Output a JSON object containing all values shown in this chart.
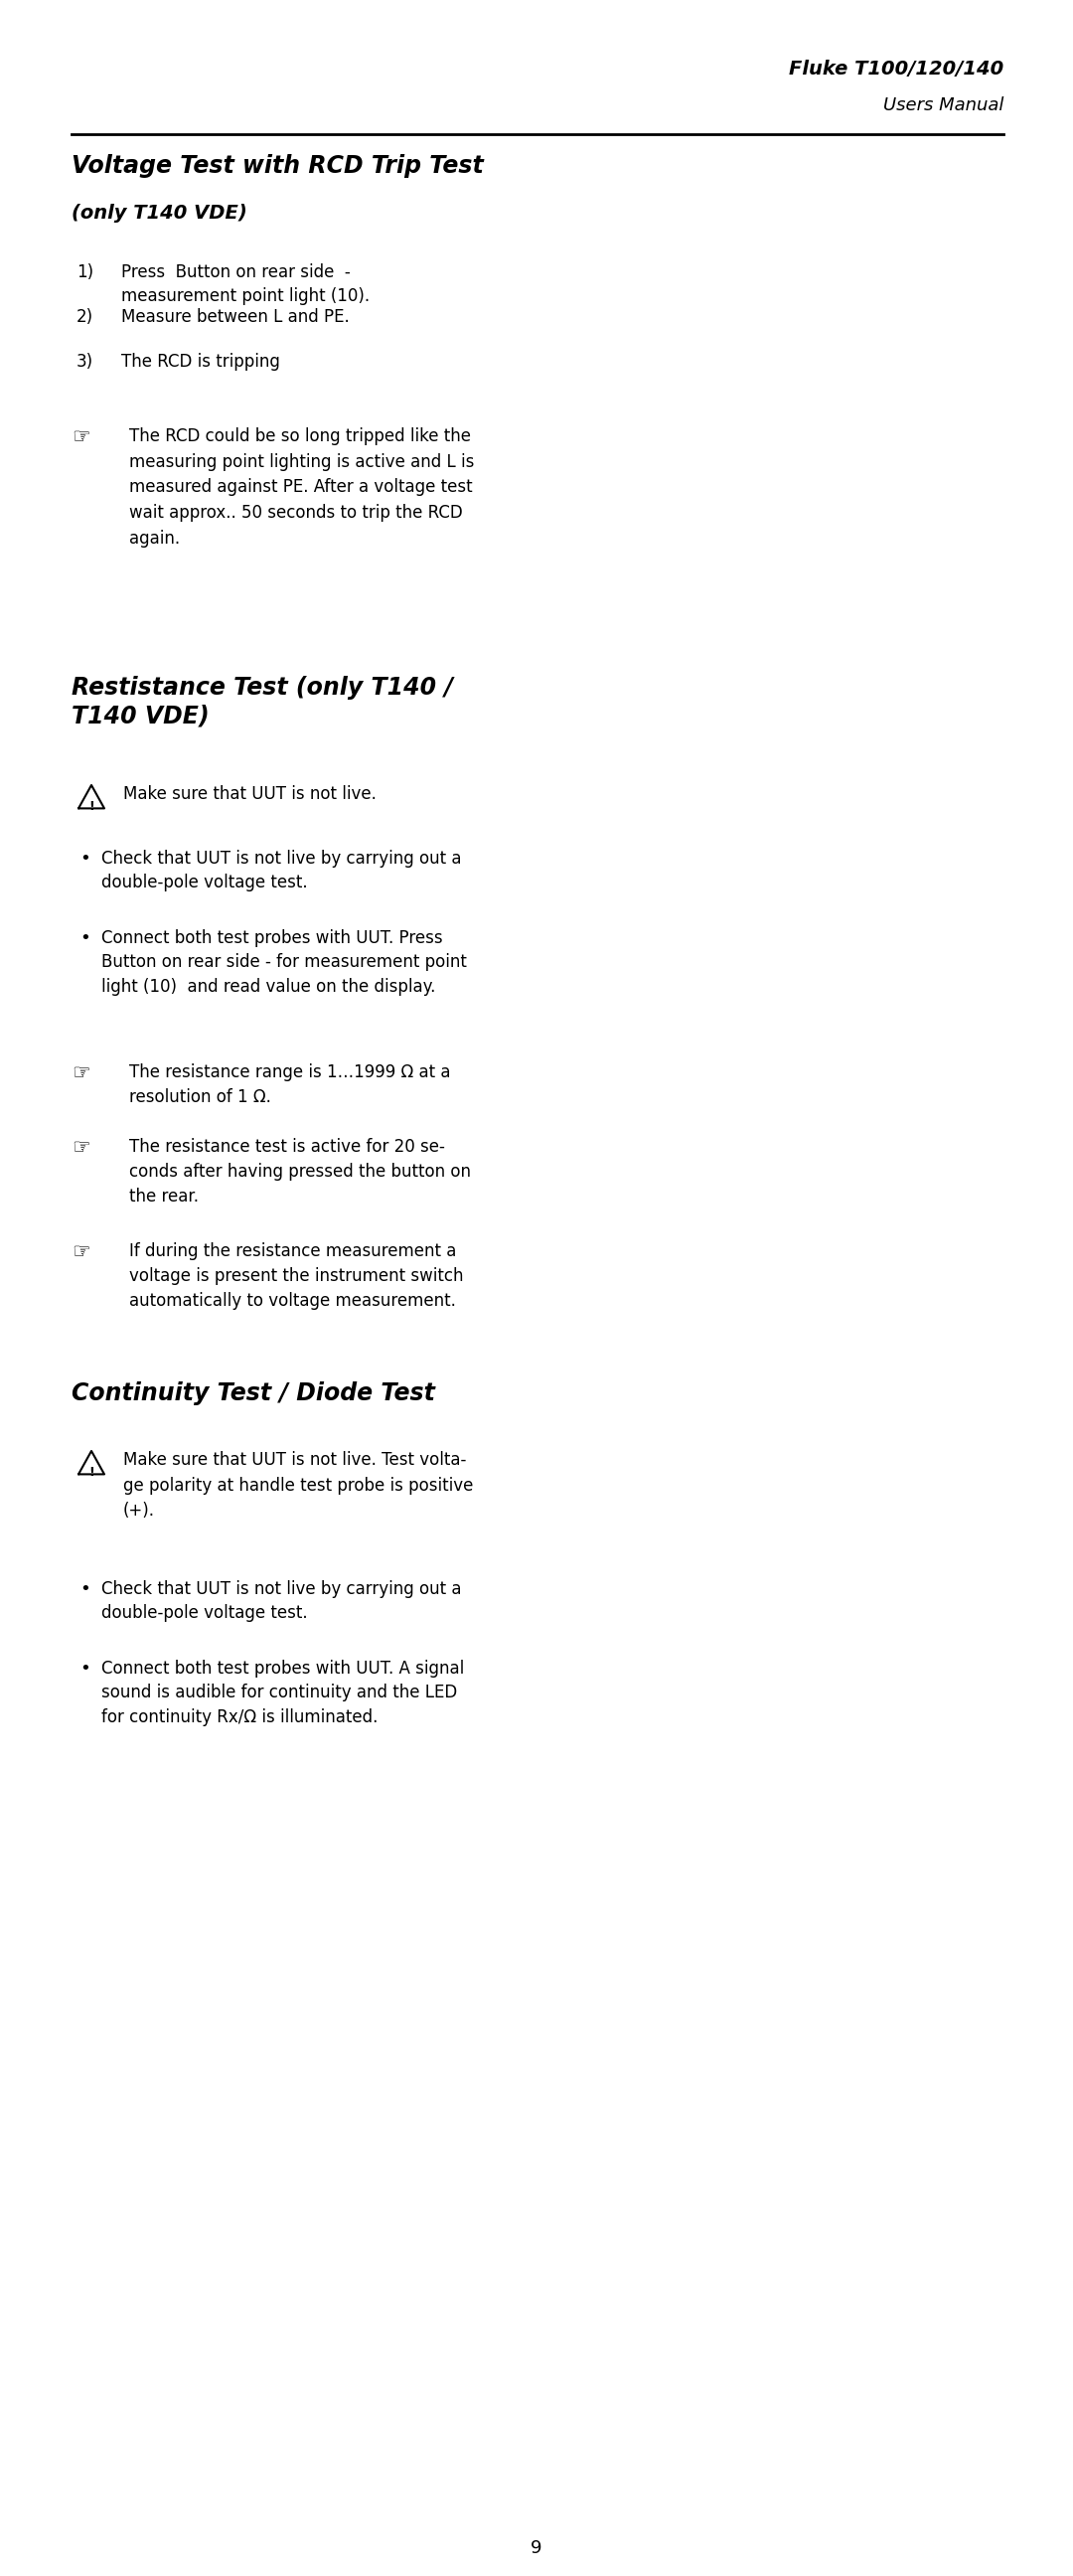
{
  "bg_color": "#ffffff",
  "header_title": "Fluke T100/120/140",
  "header_subtitle": "Users Manual",
  "section1_title": "Voltage Test with RCD Trip Test",
  "section1_subtitle": "(only T140 VDE)",
  "section1_items": [
    [
      "1)",
      "Press  Button on rear side  -\nmeasurement point light (10)."
    ],
    [
      "2)",
      "Measure between L and PE."
    ],
    [
      "3)",
      "The RCD is tripping"
    ]
  ],
  "section1_note": "The RCD could be so long tripped like the\nmeasuring point lighting is active and L is\nmeasured against PE. After a voltage test\nwait approx.. 50 seconds to trip the RCD\nagain.",
  "section2_title": "Restistance Test (only T140 /\nT140 VDE)",
  "section2_warning": "Make sure that UUT is not live.",
  "section2_bullets": [
    "Check that UUT is not live by carrying out a\ndouble-pole voltage test.",
    "Connect both test probes with UUT. Press\nButton on rear side - for measurement point\nlight (10)  and read value on the display."
  ],
  "section2_notes": [
    "The resistance range is 1…1999 Ω at a\nresolution of 1 Ω.",
    "The resistance test is active for 20 se-\nconds after having pressed the button on\nthe rear.",
    "If during the resistance measurement a\nvoltage is present the instrument switch\nautomatically to voltage measurement."
  ],
  "section3_title": "Continuity Test / Diode Test",
  "section3_warning": "Make sure that UUT is not live. Test volta-\nge polarity at handle test probe is positive\n(+).",
  "section3_bullets": [
    "Check that UUT is not live by carrying out a\ndouble-pole voltage test.",
    "Connect both test probes with UUT. A signal\nsound is audible for continuity and the LED\nfor continuity Rx/Ω is illuminated."
  ],
  "page_number": "9"
}
